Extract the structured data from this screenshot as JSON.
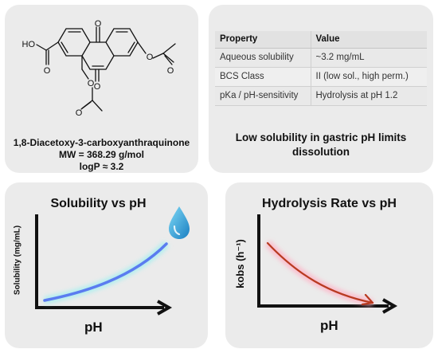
{
  "structure": {
    "name": "1,8-Diacetoxy-3-carboxyanthraquinone",
    "mw": "MW = 368.29 g/mol",
    "logp": "logP ≈ 3.2",
    "atom_labels": {
      "o_top": "O",
      "o_mid": "O",
      "oh": "HO",
      "o_acid": "O",
      "o_right_ester": "O",
      "o_right_carbonyl": "O",
      "o_left_ester": "O",
      "o_left_carbonyl": "O"
    }
  },
  "properties": {
    "headers": [
      "Property",
      "Value"
    ],
    "rows": [
      [
        "Aqueous solubility",
        "~3.2 mg/mL"
      ],
      [
        "BCS Class",
        "II (low sol., high perm.)"
      ],
      [
        "pKa / pH-sensitivity",
        "Hydrolysis at pH 1.2"
      ]
    ],
    "note": "Low solubility in gastric pH limits dissolution"
  },
  "solubility_plot": {
    "title": "Solubility vs pH",
    "xlabel": "pH",
    "ylabel": "Solubility (mg/mL)",
    "icon": "water-drop-icon",
    "curve_color": "#5b7cf0",
    "trend": "increasing"
  },
  "hydrolysis_plot": {
    "title": "Hydrolysis Rate vs pH",
    "xlabel": "pH",
    "ylabel": "kobs (h⁻¹)",
    "curve_color": "#b83a20",
    "trend": "decreasing"
  }
}
